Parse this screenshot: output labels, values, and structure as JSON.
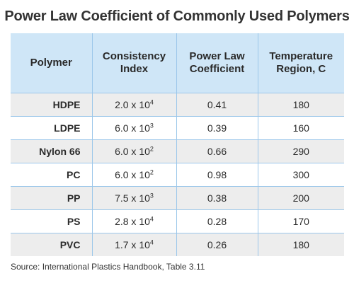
{
  "title": "Power Law Coefficient of Commonly Used Polymers",
  "columns": [
    {
      "line1": "Polymer",
      "line2": ""
    },
    {
      "line1": "Consistency",
      "line2": "Index"
    },
    {
      "line1": "Power Law",
      "line2": "Coefficient"
    },
    {
      "line1": "Temperature",
      "line2": "Region, C"
    }
  ],
  "rows": [
    {
      "polymer": "HDPE",
      "index_mantissa": "2.0 x 10",
      "index_exp": "4",
      "coefficient": "0.41",
      "temperature": "180"
    },
    {
      "polymer": "LDPE",
      "index_mantissa": "6.0 x 10",
      "index_exp": "3",
      "coefficient": "0.39",
      "temperature": "160"
    },
    {
      "polymer": "Nylon 66",
      "index_mantissa": "6.0 x 10",
      "index_exp": "2",
      "coefficient": "0.66",
      "temperature": "290"
    },
    {
      "polymer": "PC",
      "index_mantissa": "6.0 x 10",
      "index_exp": "2",
      "coefficient": "0.98",
      "temperature": "300"
    },
    {
      "polymer": "PP",
      "index_mantissa": "7.5 x 10",
      "index_exp": "3",
      "coefficient": "0.38",
      "temperature": "200"
    },
    {
      "polymer": "PS",
      "index_mantissa": "2.8 x 10",
      "index_exp": "4",
      "coefficient": "0.28",
      "temperature": "170"
    },
    {
      "polymer": "PVC",
      "index_mantissa": "1.7 x 10",
      "index_exp": "4",
      "coefficient": "0.26",
      "temperature": "180"
    }
  ],
  "source": "Source: International Plastics Handbook, Table 3.11"
}
